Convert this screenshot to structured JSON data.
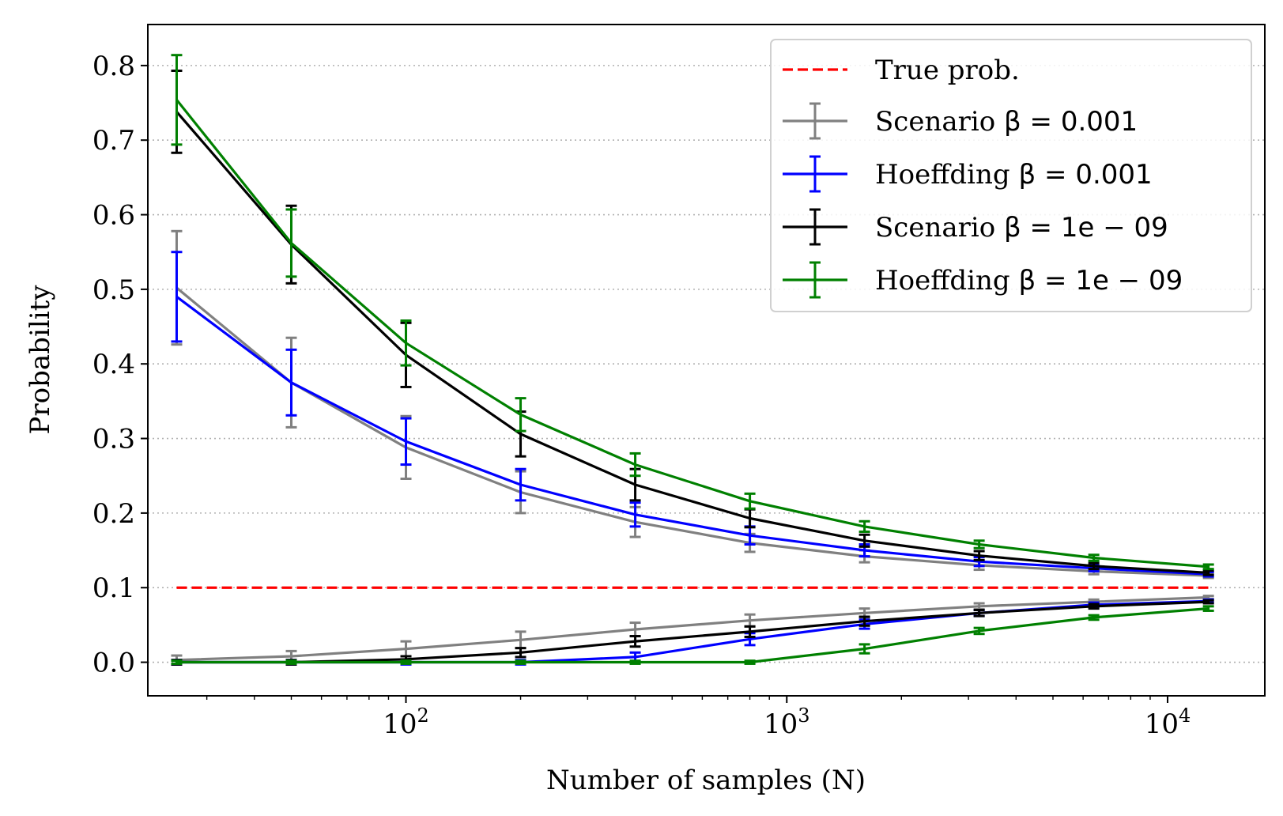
{
  "chart_data": {
    "type": "line",
    "xscale": "log",
    "xlabel": "Number of samples (N)",
    "ylabel": "Probability",
    "xlim": [
      21,
      18000
    ],
    "ylim": [
      -0.045,
      0.855
    ],
    "grid": {
      "y": true,
      "style": "dotted"
    },
    "legend_position": "upper right",
    "x_tick_labels": [
      "10",
      "2",
      "10",
      "3",
      "10",
      "4"
    ],
    "x_ticks": [
      {
        "value": 100,
        "base": "10",
        "exp": "2"
      },
      {
        "value": 1000,
        "base": "10",
        "exp": "3"
      },
      {
        "value": 10000,
        "base": "10",
        "exp": "4"
      }
    ],
    "y_ticks": [
      "0.0",
      "0.1",
      "0.2",
      "0.3",
      "0.4",
      "0.5",
      "0.6",
      "0.7",
      "0.8"
    ],
    "x": [
      25,
      50,
      100,
      200,
      400,
      800,
      1600,
      3200,
      6400,
      12800
    ],
    "true_prob": {
      "name": "True prob.",
      "value": 0.1,
      "color": "#ff0000"
    },
    "series": [
      {
        "key": "scenario_beta_0001",
        "legend_prefix": "Scenario ",
        "legend_math": "β = 0.001",
        "color": "#808080",
        "upper": [
          0.502,
          0.375,
          0.288,
          0.228,
          0.188,
          0.16,
          0.142,
          0.13,
          0.122,
          0.116
        ],
        "upper_err": [
          0.076,
          0.06,
          0.042,
          0.028,
          0.02,
          0.012,
          0.008,
          0.006,
          0.004,
          0.003
        ],
        "lower": [
          0.003,
          0.008,
          0.018,
          0.03,
          0.044,
          0.056,
          0.066,
          0.075,
          0.081,
          0.087
        ],
        "lower_err": [
          0.006,
          0.007,
          0.01,
          0.011,
          0.009,
          0.008,
          0.006,
          0.004,
          0.003,
          0.002
        ]
      },
      {
        "key": "hoeffding_beta_0001",
        "legend_prefix": "Hoeffding ",
        "legend_math": "β = 0.001",
        "color": "#0000ff",
        "upper": [
          0.49,
          0.375,
          0.296,
          0.238,
          0.198,
          0.17,
          0.15,
          0.135,
          0.126,
          0.118
        ],
        "upper_err": [
          0.06,
          0.044,
          0.031,
          0.021,
          0.016,
          0.012,
          0.008,
          0.006,
          0.004,
          0.003
        ],
        "lower": [
          0.0,
          0.0,
          0.0,
          0.0,
          0.007,
          0.031,
          0.051,
          0.066,
          0.077,
          0.082
        ],
        "lower_err": [
          0.003,
          0.003,
          0.003,
          0.003,
          0.006,
          0.008,
          0.006,
          0.004,
          0.003,
          0.002
        ]
      },
      {
        "key": "scenario_beta_1e09",
        "legend_prefix": "Scenario ",
        "legend_math": "β = 1e − 09",
        "color": "#000000",
        "upper": [
          0.738,
          0.56,
          0.412,
          0.306,
          0.238,
          0.193,
          0.163,
          0.143,
          0.129,
          0.12
        ],
        "upper_err": [
          0.055,
          0.052,
          0.043,
          0.03,
          0.021,
          0.012,
          0.008,
          0.006,
          0.004,
          0.003
        ],
        "lower": [
          0.0,
          0.0,
          0.004,
          0.013,
          0.028,
          0.041,
          0.055,
          0.066,
          0.075,
          0.081
        ],
        "lower_err": [
          0.003,
          0.003,
          0.004,
          0.006,
          0.007,
          0.007,
          0.006,
          0.004,
          0.003,
          0.002
        ]
      },
      {
        "key": "hoeffding_beta_1e09",
        "legend_prefix": "Hoeffding ",
        "legend_math": "β = 1e − 09",
        "color": "#008000",
        "upper": [
          0.754,
          0.562,
          0.428,
          0.332,
          0.265,
          0.216,
          0.182,
          0.158,
          0.14,
          0.128
        ],
        "upper_err": [
          0.06,
          0.045,
          0.03,
          0.022,
          0.015,
          0.01,
          0.007,
          0.005,
          0.004,
          0.003
        ],
        "lower": [
          0.0,
          0.0,
          0.0,
          0.0,
          0.0,
          0.0,
          0.018,
          0.042,
          0.06,
          0.072
        ],
        "lower_err": [
          0.002,
          0.002,
          0.002,
          0.002,
          0.002,
          0.002,
          0.006,
          0.004,
          0.003,
          0.003
        ]
      }
    ]
  }
}
